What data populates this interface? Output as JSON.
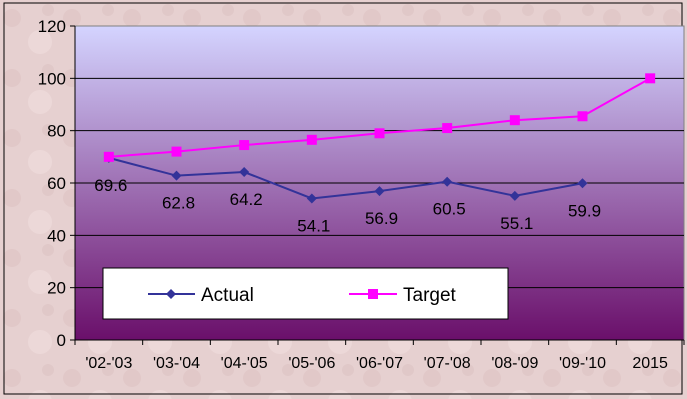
{
  "chart_data": {
    "type": "line",
    "title": "",
    "xlabel": "",
    "ylabel": "",
    "categories": [
      "'02-'03",
      "'03-'04",
      "'04-'05",
      "'05-'06",
      "'06-'07",
      "'07-'08",
      "'08-'09",
      "'09-'10",
      "2015"
    ],
    "ylim": [
      0,
      120
    ],
    "yticks": [
      "0",
      "20",
      "40",
      "60",
      "80",
      "100",
      "120"
    ],
    "grid": true,
    "legend_position": "bottom-left",
    "series": [
      {
        "name": "Actual",
        "color": "#333399",
        "marker": "diamond",
        "values": [
          69.6,
          62.8,
          64.2,
          54.1,
          56.9,
          60.5,
          55.1,
          59.9,
          null
        ],
        "labels": [
          "69.6",
          "62.8",
          "64.2",
          "54.1",
          "56.9",
          "60.5",
          "55.1",
          "59.9",
          ""
        ]
      },
      {
        "name": "Target",
        "color": "#ff00ff",
        "marker": "square",
        "values": [
          70,
          72,
          74.5,
          76.5,
          79,
          81,
          84,
          85.5,
          100
        ],
        "labels": []
      }
    ],
    "plot_gradient": [
      "#d4d4ff",
      "#6a0f6a"
    ]
  }
}
